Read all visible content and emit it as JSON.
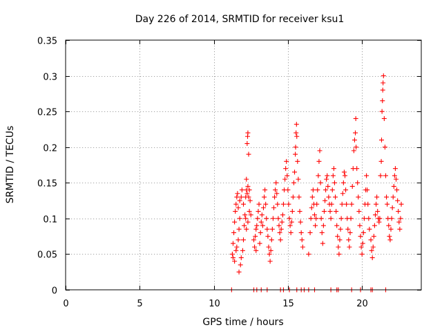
{
  "chart_data": {
    "type": "scatter",
    "title": "Day 226 of 2014, SRMTID for receiver ksu1",
    "xlabel": "GPS time / hours",
    "ylabel": "SRMTID / TECUs",
    "xlim": [
      0,
      24
    ],
    "ylim": [
      0,
      0.35
    ],
    "x_ticks": [
      0,
      5,
      10,
      15,
      20
    ],
    "x_tick_labels": [
      "0",
      "5",
      "10",
      "15",
      "20"
    ],
    "y_ticks": [
      0,
      0.05,
      0.1,
      0.15,
      0.2,
      0.25,
      0.3,
      0.35
    ],
    "y_tick_labels": [
      "0",
      "0.05",
      "0.1",
      "0.15",
      "0.2",
      "0.25",
      "0.3",
      "0.35"
    ],
    "grid": true,
    "marker": "plus",
    "color": "#ff0000",
    "series": [
      {
        "name": "SRMTID",
        "points": [
          [
            11.2,
            0
          ],
          [
            12.7,
            0
          ],
          [
            12.9,
            0
          ],
          [
            13.2,
            0
          ],
          [
            13.6,
            0
          ],
          [
            14.5,
            0
          ],
          [
            14.7,
            0
          ],
          [
            15.1,
            0
          ],
          [
            15.6,
            0
          ],
          [
            15.9,
            0
          ],
          [
            16.1,
            0
          ],
          [
            16.4,
            0
          ],
          [
            16.8,
            0
          ],
          [
            17.9,
            0
          ],
          [
            18.3,
            0
          ],
          [
            18.4,
            0
          ],
          [
            19.3,
            0
          ],
          [
            19.9,
            0
          ],
          [
            20.6,
            0
          ],
          [
            20.7,
            0
          ],
          [
            21.6,
            0
          ],
          [
            11.25,
            0.05
          ],
          [
            11.3,
            0.065
          ],
          [
            11.35,
            0.08
          ],
          [
            11.4,
            0.095
          ],
          [
            11.45,
            0.11
          ],
          [
            11.5,
            0.12
          ],
          [
            11.55,
            0.13
          ],
          [
            11.6,
            0.135
          ],
          [
            11.3,
            0.045
          ],
          [
            11.4,
            0.04
          ],
          [
            11.5,
            0.055
          ],
          [
            11.55,
            0.06
          ],
          [
            11.65,
            0.07
          ],
          [
            11.7,
            0.085
          ],
          [
            11.75,
            0.1
          ],
          [
            11.65,
            0.115
          ],
          [
            11.75,
            0.125
          ],
          [
            11.85,
            0.13
          ],
          [
            11.9,
            0.14
          ],
          [
            11.8,
            0.035
          ],
          [
            11.7,
            0.025
          ],
          [
            11.85,
            0.045
          ],
          [
            11.95,
            0.055
          ],
          [
            12.0,
            0.07
          ],
          [
            12.05,
            0.09
          ],
          [
            12.1,
            0.105
          ],
          [
            12.0,
            0.12
          ],
          [
            12.15,
            0.13
          ],
          [
            12.2,
            0.14
          ],
          [
            12.25,
            0.135
          ],
          [
            12.3,
            0.145
          ],
          [
            12.35,
            0.13
          ],
          [
            12.4,
            0.14
          ],
          [
            12.45,
            0.125
          ],
          [
            12.2,
            0.155
          ],
          [
            12.25,
            0.205
          ],
          [
            12.28,
            0.215
          ],
          [
            12.3,
            0.22
          ],
          [
            12.35,
            0.19
          ],
          [
            12.15,
            0.1
          ],
          [
            12.2,
            0.085
          ],
          [
            12.3,
            0.095
          ],
          [
            12.4,
            0.11
          ],
          [
            12.5,
            0.105
          ],
          [
            12.7,
            0.07
          ],
          [
            12.75,
            0.06
          ],
          [
            12.8,
            0.075
          ],
          [
            12.85,
            0.085
          ],
          [
            12.9,
            0.09
          ],
          [
            12.95,
            0.1
          ],
          [
            13.0,
            0.11
          ],
          [
            13.05,
            0.12
          ],
          [
            12.85,
            0.055
          ],
          [
            13.1,
            0.065
          ],
          [
            13.15,
            0.08
          ],
          [
            13.2,
            0.095
          ],
          [
            13.25,
            0.105
          ],
          [
            13.3,
            0.09
          ],
          [
            13.35,
            0.115
          ],
          [
            13.4,
            0.13
          ],
          [
            13.45,
            0.14
          ],
          [
            13.5,
            0.12
          ],
          [
            13.55,
            0.1
          ],
          [
            13.6,
            0.085
          ],
          [
            13.65,
            0.075
          ],
          [
            13.7,
            0.06
          ],
          [
            13.75,
            0.05
          ],
          [
            13.8,
            0.04
          ],
          [
            13.85,
            0.055
          ],
          [
            13.9,
            0.07
          ],
          [
            13.95,
            0.085
          ],
          [
            14.0,
            0.1
          ],
          [
            14.05,
            0.115
          ],
          [
            14.1,
            0.13
          ],
          [
            14.15,
            0.14
          ],
          [
            14.2,
            0.15
          ],
          [
            14.25,
            0.135
          ],
          [
            14.3,
            0.12
          ],
          [
            14.35,
            0.1
          ],
          [
            14.4,
            0.09
          ],
          [
            14.45,
            0.08
          ],
          [
            14.5,
            0.07
          ],
          [
            14.55,
            0.085
          ],
          [
            14.6,
            0.095
          ],
          [
            14.65,
            0.105
          ],
          [
            14.7,
            0.12
          ],
          [
            14.75,
            0.14
          ],
          [
            14.8,
            0.155
          ],
          [
            14.85,
            0.17
          ],
          [
            14.9,
            0.18
          ],
          [
            14.95,
            0.16
          ],
          [
            15.0,
            0.14
          ],
          [
            15.05,
            0.12
          ],
          [
            15.1,
            0.1
          ],
          [
            15.15,
            0.09
          ],
          [
            15.2,
            0.08
          ],
          [
            15.25,
            0.095
          ],
          [
            15.3,
            0.11
          ],
          [
            15.35,
            0.13
          ],
          [
            15.4,
            0.15
          ],
          [
            15.45,
            0.165
          ],
          [
            15.5,
            0.19
          ],
          [
            15.52,
            0.2
          ],
          [
            15.55,
            0.22
          ],
          [
            15.58,
            0.232
          ],
          [
            15.6,
            0.215
          ],
          [
            15.65,
            0.18
          ],
          [
            15.7,
            0.155
          ],
          [
            15.75,
            0.13
          ],
          [
            15.8,
            0.11
          ],
          [
            15.85,
            0.095
          ],
          [
            15.9,
            0.08
          ],
          [
            15.95,
            0.07
          ],
          [
            16.0,
            0.06
          ],
          [
            16.4,
            0.05
          ],
          [
            16.5,
            0.08
          ],
          [
            16.55,
            0.1
          ],
          [
            16.6,
            0.115
          ],
          [
            16.65,
            0.13
          ],
          [
            16.7,
            0.14
          ],
          [
            16.75,
            0.12
          ],
          [
            16.8,
            0.105
          ],
          [
            16.85,
            0.09
          ],
          [
            16.9,
            0.1
          ],
          [
            16.95,
            0.12
          ],
          [
            17.0,
            0.14
          ],
          [
            17.05,
            0.16
          ],
          [
            17.1,
            0.18
          ],
          [
            17.15,
            0.195
          ],
          [
            17.2,
            0.15
          ],
          [
            17.25,
            0.1
          ],
          [
            17.3,
            0.08
          ],
          [
            17.35,
            0.065
          ],
          [
            17.4,
            0.09
          ],
          [
            17.45,
            0.11
          ],
          [
            17.5,
            0.125
          ],
          [
            17.55,
            0.14
          ],
          [
            17.6,
            0.155
          ],
          [
            17.65,
            0.16
          ],
          [
            17.7,
            0.145
          ],
          [
            17.75,
            0.13
          ],
          [
            17.8,
            0.12
          ],
          [
            17.85,
            0.11
          ],
          [
            17.9,
            0.1
          ],
          [
            17.95,
            0.12
          ],
          [
            18.0,
            0.14
          ],
          [
            18.05,
            0.16
          ],
          [
            18.1,
            0.17
          ],
          [
            18.15,
            0.15
          ],
          [
            18.2,
            0.13
          ],
          [
            18.25,
            0.11
          ],
          [
            18.3,
            0.09
          ],
          [
            18.35,
            0.075
          ],
          [
            18.4,
            0.06
          ],
          [
            18.45,
            0.05
          ],
          [
            18.5,
            0.07
          ],
          [
            18.55,
            0.085
          ],
          [
            18.6,
            0.1
          ],
          [
            18.65,
            0.12
          ],
          [
            18.7,
            0.135
          ],
          [
            18.75,
            0.15
          ],
          [
            18.8,
            0.165
          ],
          [
            18.85,
            0.16
          ],
          [
            18.9,
            0.14
          ],
          [
            18.95,
            0.12
          ],
          [
            19.0,
            0.1
          ],
          [
            19.05,
            0.085
          ],
          [
            19.1,
            0.07
          ],
          [
            19.15,
            0.06
          ],
          [
            19.2,
            0.08
          ],
          [
            19.25,
            0.1
          ],
          [
            19.3,
            0.12
          ],
          [
            19.35,
            0.145
          ],
          [
            19.4,
            0.17
          ],
          [
            19.45,
            0.195
          ],
          [
            19.5,
            0.21
          ],
          [
            19.55,
            0.22
          ],
          [
            19.58,
            0.24
          ],
          [
            19.6,
            0.2
          ],
          [
            19.65,
            0.17
          ],
          [
            19.7,
            0.15
          ],
          [
            19.75,
            0.13
          ],
          [
            19.8,
            0.11
          ],
          [
            19.85,
            0.09
          ],
          [
            19.9,
            0.075
          ],
          [
            19.95,
            0.06
          ],
          [
            20.0,
            0.05
          ],
          [
            20.05,
            0.065
          ],
          [
            20.1,
            0.08
          ],
          [
            20.15,
            0.1
          ],
          [
            20.2,
            0.12
          ],
          [
            20.25,
            0.14
          ],
          [
            20.3,
            0.16
          ],
          [
            20.35,
            0.14
          ],
          [
            20.4,
            0.12
          ],
          [
            20.45,
            0.1
          ],
          [
            20.5,
            0.085
          ],
          [
            20.6,
            0.07
          ],
          [
            20.65,
            0.055
          ],
          [
            20.7,
            0.045
          ],
          [
            20.75,
            0.06
          ],
          [
            20.8,
            0.075
          ],
          [
            20.85,
            0.09
          ],
          [
            20.9,
            0.105
          ],
          [
            20.95,
            0.12
          ],
          [
            21.0,
            0.13
          ],
          [
            21.05,
            0.11
          ],
          [
            21.1,
            0.1
          ],
          [
            21.15,
            0.095
          ],
          [
            21.2,
            0.1
          ],
          [
            21.25,
            0.16
          ],
          [
            21.3,
            0.18
          ],
          [
            21.32,
            0.21
          ],
          [
            21.35,
            0.25
          ],
          [
            21.38,
            0.265
          ],
          [
            21.4,
            0.28
          ],
          [
            21.42,
            0.29
          ],
          [
            21.45,
            0.3
          ],
          [
            21.5,
            0.24
          ],
          [
            21.55,
            0.2
          ],
          [
            21.6,
            0.16
          ],
          [
            21.65,
            0.13
          ],
          [
            21.7,
            0.12
          ],
          [
            21.75,
            0.1
          ],
          [
            21.8,
            0.09
          ],
          [
            21.85,
            0.075
          ],
          [
            21.9,
            0.07
          ],
          [
            21.95,
            0.085
          ],
          [
            22.0,
            0.1
          ],
          [
            22.05,
            0.115
          ],
          [
            22.1,
            0.13
          ],
          [
            22.15,
            0.145
          ],
          [
            22.2,
            0.16
          ],
          [
            22.25,
            0.17
          ],
          [
            22.3,
            0.155
          ],
          [
            22.35,
            0.14
          ],
          [
            22.4,
            0.125
          ],
          [
            22.45,
            0.11
          ],
          [
            22.5,
            0.095
          ],
          [
            22.55,
            0.085
          ],
          [
            22.6,
            0.1
          ],
          [
            22.65,
            0.12
          ]
        ]
      }
    ]
  }
}
